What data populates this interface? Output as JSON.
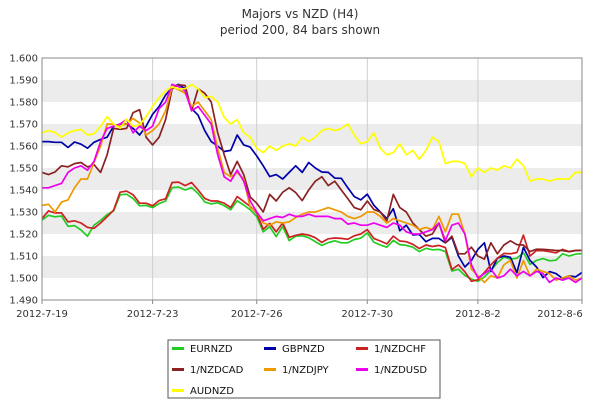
{
  "chart_data": {
    "type": "line",
    "title": "Majors vs NZD (H4)",
    "subtitle": "period 200, 84 bars shown",
    "xlabel": "",
    "ylabel": "",
    "x_tick_labels": [
      "2012-7-19",
      "2012-7-23",
      "2012-7-26",
      "2012-7-30",
      "2012-8-2",
      "2012-8-6"
    ],
    "x_tick_positions": [
      0,
      17,
      33,
      50,
      67,
      83
    ],
    "ylim": [
      1.49,
      1.6
    ],
    "y_ticks": [
      "1.490",
      "1.500",
      "1.510",
      "1.520",
      "1.530",
      "1.540",
      "1.550",
      "1.560",
      "1.570",
      "1.580",
      "1.590",
      "1.600"
    ],
    "grid": "horizontal-bands",
    "legend_position": "bottom",
    "series": [
      {
        "name": "EURNZD",
        "color": "#22cc22",
        "values": [
          1.5263,
          1.5285,
          1.5278,
          1.5282,
          1.5235,
          1.5238,
          1.5218,
          1.519,
          1.524,
          1.5262,
          1.5288,
          1.5305,
          1.5378,
          1.5381,
          1.5361,
          1.5328,
          1.533,
          1.532,
          1.5338,
          1.535,
          1.5411,
          1.5413,
          1.54,
          1.5411,
          1.5384,
          1.5346,
          1.5337,
          1.5342,
          1.5329,
          1.531,
          1.5351,
          1.5332,
          1.531,
          1.528,
          1.521,
          1.5233,
          1.5188,
          1.5235,
          1.517,
          1.519,
          1.5192,
          1.5183,
          1.5165,
          1.5148,
          1.5161,
          1.5169,
          1.516,
          1.516,
          1.5175,
          1.5181,
          1.5205,
          1.5163,
          1.515,
          1.514,
          1.5171,
          1.5152,
          1.5148,
          1.514,
          1.512,
          1.5135,
          1.5128,
          1.513,
          1.512,
          1.5032,
          1.504,
          1.5012,
          1.4995,
          1.4985,
          1.5005,
          1.5035,
          1.507,
          1.5095,
          1.5086,
          1.509,
          1.5115,
          1.5062,
          1.508,
          1.5088,
          1.5078,
          1.5081,
          1.511,
          1.51,
          1.5108,
          1.5111
        ]
      },
      {
        "name": "GBPNZD",
        "color": "#0000aa",
        "values": [
          1.562,
          1.562,
          1.5617,
          1.5617,
          1.5593,
          1.5618,
          1.5608,
          1.559,
          1.5617,
          1.563,
          1.564,
          1.569,
          1.57,
          1.57,
          1.568,
          1.565,
          1.569,
          1.5744,
          1.578,
          1.5832,
          1.5866,
          1.588,
          1.586,
          1.577,
          1.574,
          1.567,
          1.562,
          1.56,
          1.5575,
          1.558,
          1.565,
          1.5605,
          1.5595,
          1.5555,
          1.551,
          1.5461,
          1.547,
          1.545,
          1.548,
          1.551,
          1.548,
          1.5525,
          1.55,
          1.5482,
          1.548,
          1.5454,
          1.5453,
          1.541,
          1.537,
          1.5355,
          1.5381,
          1.5331,
          1.53,
          1.527,
          1.5315,
          1.5215,
          1.524,
          1.5196,
          1.5198,
          1.5165,
          1.518,
          1.518,
          1.516,
          1.5185,
          1.51,
          1.505,
          1.508,
          1.513,
          1.516,
          1.503,
          1.509,
          1.51,
          1.5094,
          1.5024,
          1.5139,
          1.508,
          1.505,
          1.5002,
          1.5029,
          1.502,
          1.4998,
          1.501,
          1.5005,
          1.5025
        ]
      },
      {
        "name": "1/NZDCHF",
        "color": "#cc2222",
        "values": [
          1.527,
          1.5305,
          1.5296,
          1.5296,
          1.5255,
          1.526,
          1.525,
          1.523,
          1.5226,
          1.525,
          1.5278,
          1.5308,
          1.539,
          1.5395,
          1.5378,
          1.534,
          1.534,
          1.5328,
          1.5352,
          1.536,
          1.5434,
          1.5436,
          1.542,
          1.5434,
          1.54,
          1.5362,
          1.535,
          1.535,
          1.534,
          1.532,
          1.537,
          1.5348,
          1.5325,
          1.5295,
          1.5222,
          1.5248,
          1.521,
          1.525,
          1.5185,
          1.5194,
          1.52,
          1.5195,
          1.5183,
          1.5162,
          1.5178,
          1.5182,
          1.518,
          1.5176,
          1.5192,
          1.52,
          1.522,
          1.518,
          1.5168,
          1.5155,
          1.519,
          1.5168,
          1.5165,
          1.5153,
          1.5134,
          1.515,
          1.5143,
          1.5148,
          1.5138,
          1.5038,
          1.506,
          1.5028,
          1.4985,
          1.4992,
          1.5025,
          1.506,
          1.509,
          1.5112,
          1.511,
          1.5116,
          1.5195,
          1.51,
          1.5125,
          1.5124,
          1.512,
          1.5114,
          1.513,
          1.512,
          1.5125,
          1.5126
        ]
      },
      {
        "name": "1/NZDCAD",
        "color": "#8b2222",
        "values": [
          1.548,
          1.547,
          1.5482,
          1.551,
          1.5505,
          1.552,
          1.5525,
          1.5505,
          1.5515,
          1.548,
          1.556,
          1.568,
          1.5676,
          1.568,
          1.5752,
          1.5765,
          1.564,
          1.5605,
          1.564,
          1.572,
          1.586,
          1.5878,
          1.5875,
          1.576,
          1.586,
          1.584,
          1.58,
          1.566,
          1.556,
          1.547,
          1.553,
          1.547,
          1.5368,
          1.534,
          1.53,
          1.538,
          1.535,
          1.539,
          1.541,
          1.5388,
          1.5352,
          1.54,
          1.544,
          1.546,
          1.542,
          1.544,
          1.54,
          1.5361,
          1.532,
          1.531,
          1.535,
          1.5312,
          1.53,
          1.526,
          1.538,
          1.532,
          1.53,
          1.525,
          1.522,
          1.519,
          1.52,
          1.525,
          1.516,
          1.519,
          1.511,
          1.511,
          1.514,
          1.51,
          1.5086,
          1.516,
          1.511,
          1.515,
          1.5169,
          1.5152,
          1.515,
          1.512,
          1.5131,
          1.513,
          1.5128,
          1.5125,
          1.5125,
          1.512,
          1.5125,
          1.5126
        ]
      },
      {
        "name": "1/NZDJPY",
        "color": "#ee9900",
        "values": [
          1.533,
          1.5335,
          1.53,
          1.5345,
          1.5355,
          1.541,
          1.545,
          1.545,
          1.5525,
          1.56,
          1.57,
          1.5698,
          1.569,
          1.57,
          1.5725,
          1.5704,
          1.565,
          1.567,
          1.57,
          1.576,
          1.587,
          1.5856,
          1.584,
          1.578,
          1.58,
          1.576,
          1.572,
          1.559,
          1.548,
          1.546,
          1.548,
          1.545,
          1.532,
          1.53,
          1.525,
          1.524,
          1.5255,
          1.525,
          1.5255,
          1.5275,
          1.529,
          1.53,
          1.53,
          1.531,
          1.532,
          1.531,
          1.53,
          1.528,
          1.527,
          1.528,
          1.53,
          1.53,
          1.528,
          1.525,
          1.527,
          1.526,
          1.525,
          1.524,
          1.522,
          1.523,
          1.522,
          1.528,
          1.521,
          1.529,
          1.529,
          1.52,
          1.504,
          1.501,
          1.498,
          1.501,
          1.5,
          1.506,
          1.508,
          1.5,
          1.508,
          1.501,
          1.504,
          1.503,
          1.502,
          1.499,
          1.5,
          1.501,
          1.499,
          1.5
        ]
      },
      {
        "name": "1/NZDUSD",
        "color": "#ee00ee",
        "values": [
          1.541,
          1.541,
          1.542,
          1.543,
          1.548,
          1.55,
          1.551,
          1.549,
          1.553,
          1.562,
          1.568,
          1.569,
          1.57,
          1.572,
          1.566,
          1.569,
          1.567,
          1.569,
          1.577,
          1.58,
          1.588,
          1.587,
          1.585,
          1.576,
          1.578,
          1.574,
          1.57,
          1.556,
          1.546,
          1.544,
          1.549,
          1.544,
          1.535,
          1.53,
          1.526,
          1.527,
          1.528,
          1.5275,
          1.529,
          1.528,
          1.528,
          1.529,
          1.528,
          1.528,
          1.528,
          1.527,
          1.527,
          1.5245,
          1.525,
          1.524,
          1.524,
          1.525,
          1.524,
          1.523,
          1.525,
          1.524,
          1.521,
          1.52,
          1.52,
          1.521,
          1.522,
          1.525,
          1.517,
          1.524,
          1.525,
          1.52,
          1.506,
          1.5,
          1.502,
          1.504,
          1.5,
          1.501,
          1.504,
          1.501,
          1.503,
          1.501,
          1.503,
          1.502,
          1.498,
          1.5,
          1.499,
          1.5,
          1.498,
          1.5
        ]
      },
      {
        "name": "AUDNZD",
        "color": "#ffff00",
        "values": [
          1.566,
          1.567,
          1.5661,
          1.564,
          1.566,
          1.567,
          1.5675,
          1.565,
          1.5656,
          1.569,
          1.5733,
          1.57,
          1.5681,
          1.5722,
          1.5688,
          1.5697,
          1.5733,
          1.578,
          1.582,
          1.585,
          1.587,
          1.586,
          1.586,
          1.588,
          1.586,
          1.582,
          1.5825,
          1.58,
          1.573,
          1.57,
          1.572,
          1.566,
          1.564,
          1.559,
          1.557,
          1.56,
          1.558,
          1.56,
          1.561,
          1.56,
          1.564,
          1.562,
          1.564,
          1.567,
          1.568,
          1.567,
          1.568,
          1.57,
          1.565,
          1.561,
          1.562,
          1.566,
          1.559,
          1.556,
          1.557,
          1.561,
          1.556,
          1.558,
          1.554,
          1.558,
          1.564,
          1.562,
          1.552,
          1.553,
          1.553,
          1.552,
          1.546,
          1.55,
          1.548,
          1.55,
          1.549,
          1.551,
          1.55,
          1.554,
          1.551,
          1.544,
          1.545,
          1.545,
          1.544,
          1.545,
          1.545,
          1.545,
          1.548,
          1.548
        ]
      }
    ]
  }
}
